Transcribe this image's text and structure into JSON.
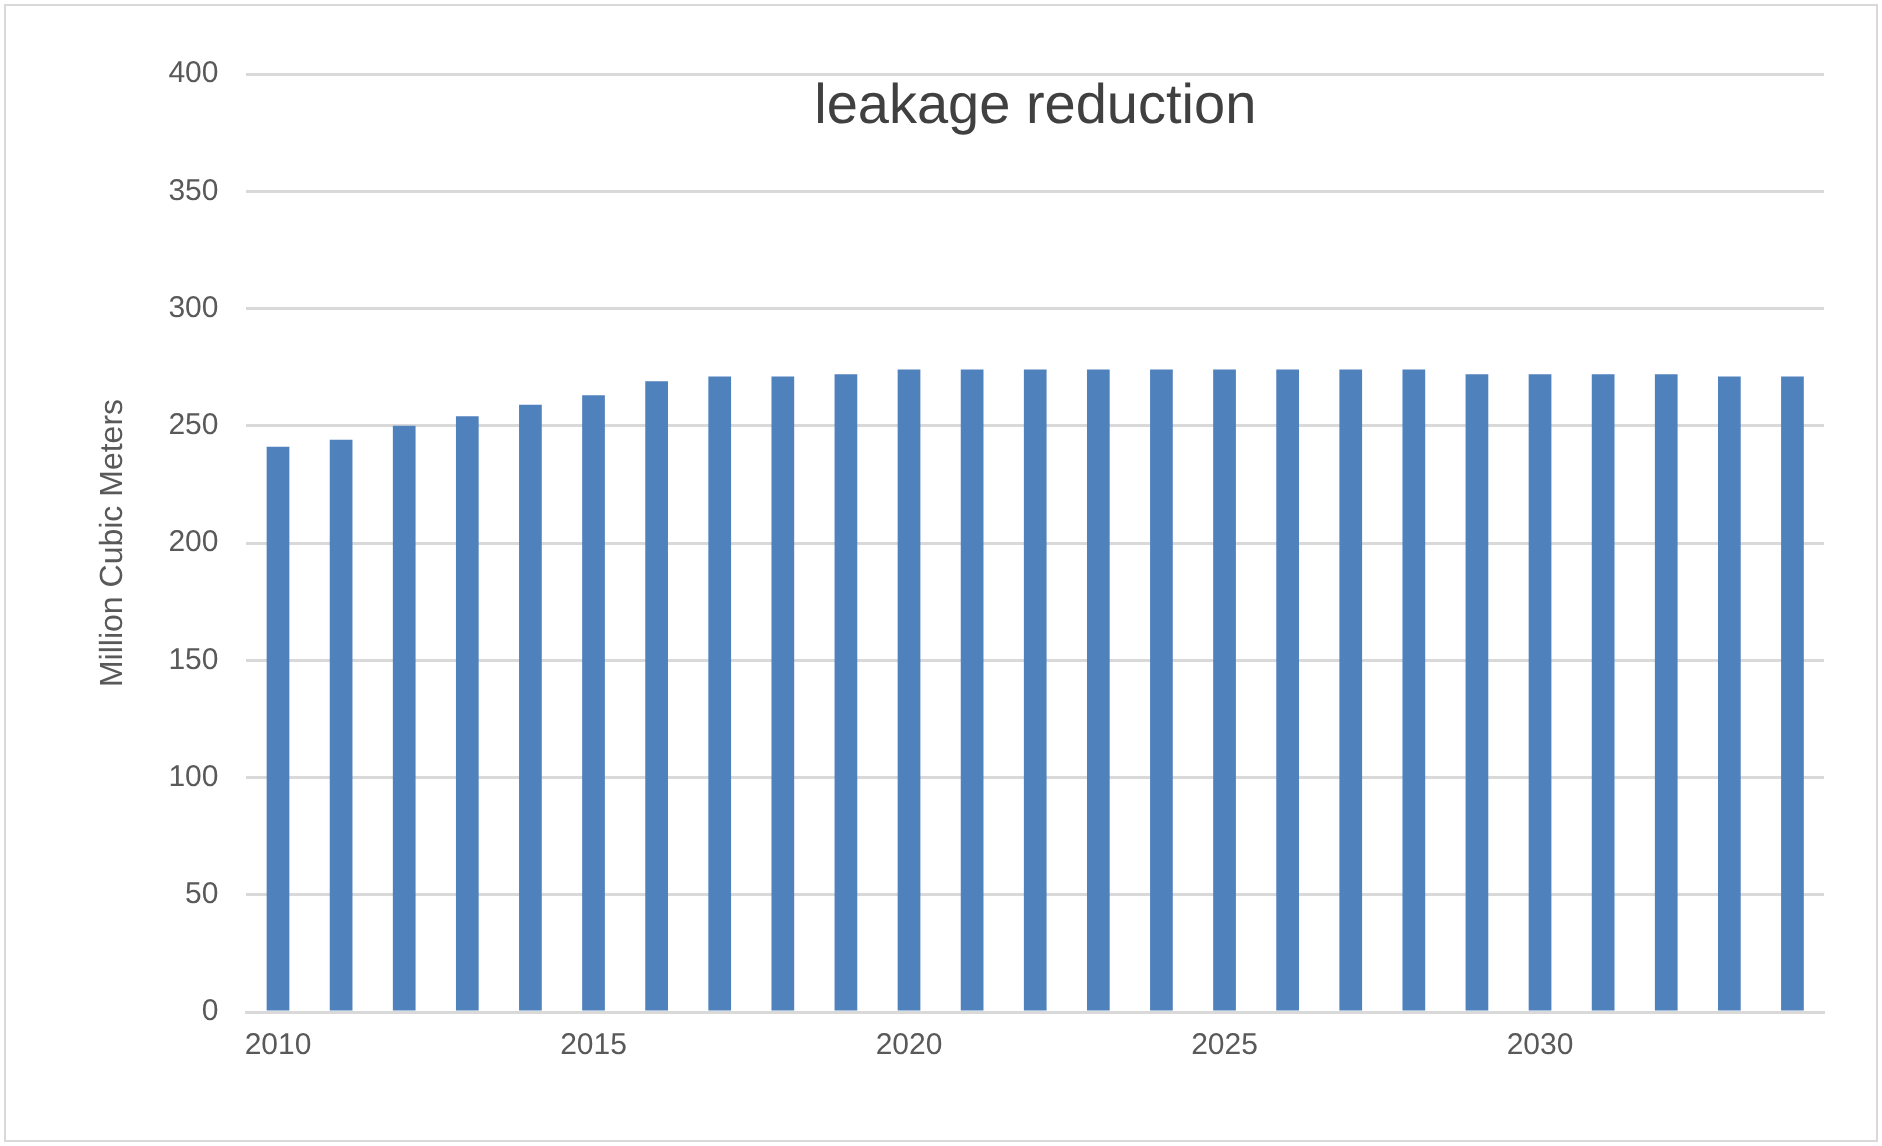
{
  "chart_data": {
    "type": "bar",
    "title": "leakage reduction",
    "ylabel": "Million Cubic Meters",
    "categories": [
      "2010",
      null,
      null,
      null,
      null,
      "2015",
      null,
      null,
      null,
      null,
      "2020",
      null,
      null,
      null,
      null,
      "2025",
      null,
      null,
      null,
      null,
      "2030",
      null,
      null,
      null,
      null
    ],
    "values": [
      241,
      244,
      250,
      254,
      259,
      263,
      269,
      271,
      271,
      272,
      274,
      274,
      274,
      274,
      274,
      274,
      274,
      274,
      274,
      272,
      272,
      272,
      272,
      271,
      271
    ],
    "color": "#4f81bd",
    "ylim": [
      0,
      400
    ],
    "yticks": [
      0,
      50,
      100,
      150,
      200,
      250,
      300,
      350,
      400
    ],
    "grid": "y",
    "legend": false
  }
}
